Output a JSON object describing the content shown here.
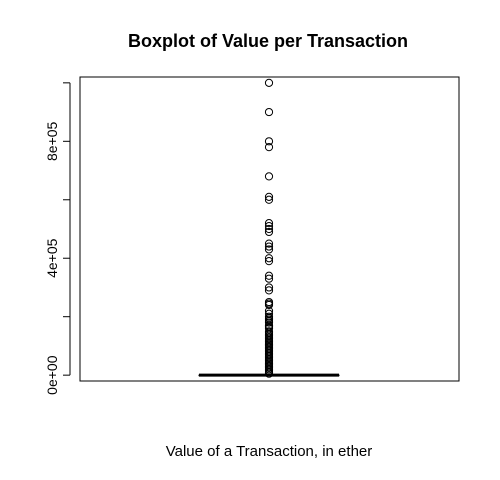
{
  "chart_data": {
    "type": "boxplot",
    "title": "Boxplot of Value per Transaction",
    "xlabel": "Value of a Transaction, in ether",
    "ylabel": "",
    "ylim": [
      -20000,
      1020000
    ],
    "y_ticks": [
      0,
      200000,
      400000,
      600000,
      800000,
      1000000
    ],
    "y_tick_labels": [
      "0e+00",
      "",
      "4e+05",
      "",
      "8e+05",
      ""
    ],
    "grid": false,
    "box": {
      "q1": 0,
      "median": 0,
      "q3": 0,
      "whisker_low": 0,
      "whisker_high": 0
    },
    "outliers": [
      1000000,
      900000,
      800000,
      780000,
      680000,
      610000,
      600000,
      520000,
      510000,
      500000,
      490000,
      450000,
      440000,
      430000,
      400000,
      390000,
      340000,
      330000,
      300000,
      290000,
      250000,
      245000,
      240000,
      220000,
      210000,
      200000,
      195000,
      190000,
      185000,
      180000,
      170000,
      165000,
      160000,
      150000,
      145000,
      140000,
      135000,
      130000,
      125000,
      120000,
      115000,
      110000,
      105000,
      100000,
      95000,
      90000,
      85000,
      80000,
      75000,
      70000,
      65000,
      60000,
      55000,
      50000,
      45000,
      40000,
      35000,
      30000,
      25000,
      20000,
      15000,
      10000,
      5000
    ]
  }
}
